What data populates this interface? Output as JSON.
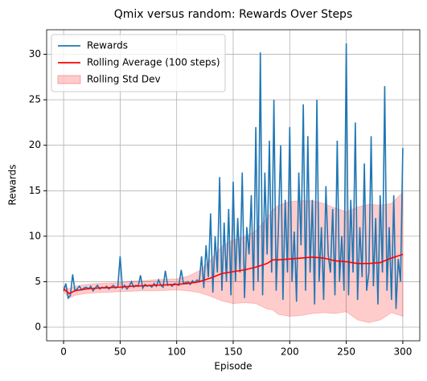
{
  "chart_data": {
    "type": "line",
    "title": "Qmix versus random: Rewards Over Steps",
    "xlabel": "Episode",
    "ylabel": "Rewards",
    "xlim": [
      -15,
      315
    ],
    "ylim": [
      -1.5,
      32.7
    ],
    "xticks": [
      0,
      50,
      100,
      150,
      200,
      250,
      300
    ],
    "yticks": [
      0,
      5,
      10,
      15,
      20,
      25,
      30
    ],
    "grid": true,
    "legend": "upper left",
    "series": [
      {
        "name": "Rewards",
        "color": "#1f77b4",
        "kind": "line",
        "x": [
          0,
          2,
          4,
          6,
          8,
          10,
          12,
          14,
          16,
          18,
          20,
          22,
          24,
          26,
          28,
          30,
          32,
          34,
          36,
          38,
          40,
          42,
          44,
          46,
          48,
          50,
          52,
          54,
          56,
          58,
          60,
          62,
          64,
          66,
          68,
          70,
          72,
          74,
          76,
          78,
          80,
          82,
          84,
          86,
          88,
          90,
          92,
          94,
          96,
          98,
          100,
          102,
          104,
          106,
          108,
          110,
          112,
          114,
          116,
          118,
          120,
          122,
          124,
          126,
          128,
          130,
          132,
          134,
          136,
          138,
          140,
          142,
          144,
          146,
          148,
          150,
          152,
          154,
          156,
          158,
          160,
          162,
          164,
          166,
          168,
          170,
          172,
          174,
          176,
          178,
          180,
          182,
          184,
          186,
          188,
          190,
          192,
          194,
          196,
          198,
          200,
          202,
          204,
          206,
          208,
          210,
          212,
          214,
          216,
          218,
          220,
          222,
          224,
          226,
          228,
          230,
          232,
          234,
          236,
          238,
          240,
          242,
          244,
          246,
          248,
          250,
          252,
          254,
          256,
          258,
          260,
          262,
          264,
          266,
          268,
          270,
          272,
          274,
          276,
          278,
          280,
          282,
          284,
          286,
          288,
          290,
          292,
          294,
          296,
          298,
          300
        ],
        "values": [
          4.0,
          4.8,
          3.2,
          3.5,
          5.8,
          4.0,
          4.2,
          4.5,
          4.1,
          4.3,
          4.4,
          4.2,
          4.5,
          4.0,
          4.3,
          4.6,
          4.2,
          4.4,
          4.3,
          4.5,
          4.2,
          4.4,
          4.6,
          4.3,
          4.5,
          7.8,
          4.3,
          4.6,
          4.2,
          4.5,
          5.0,
          4.4,
          4.6,
          4.5,
          5.7,
          4.3,
          4.7,
          4.5,
          4.6,
          4.4,
          4.8,
          4.5,
          5.2,
          4.6,
          4.4,
          6.2,
          4.6,
          4.7,
          4.5,
          4.8,
          4.7,
          4.6,
          6.3,
          4.8,
          4.9,
          5.0,
          4.7,
          5.1,
          4.9,
          5.2,
          5.0,
          7.8,
          4.3,
          9.0,
          5.5,
          12.5,
          3.8,
          10.0,
          6.0,
          16.5,
          4.0,
          11.5,
          5.0,
          13.0,
          3.5,
          16.0,
          5.0,
          12.0,
          6.0,
          17.0,
          3.2,
          11.0,
          8.0,
          14.5,
          4.0,
          22.0,
          5.0,
          30.2,
          3.5,
          17.0,
          8.0,
          20.5,
          6.0,
          25.0,
          4.0,
          11.0,
          20.0,
          3.0,
          14.0,
          6.0,
          22.0,
          5.0,
          10.5,
          2.8,
          17.0,
          9.0,
          24.5,
          4.0,
          21.0,
          6.0,
          14.0,
          2.5,
          25.0,
          5.0,
          11.0,
          3.0,
          15.5,
          8.0,
          6.0,
          13.0,
          3.5,
          20.5,
          5.0,
          10.0,
          4.0,
          31.2,
          3.5,
          14.0,
          6.0,
          22.5,
          3.0,
          11.0,
          5.5,
          18.0,
          4.0,
          6.0,
          21.0,
          4.5,
          12.0,
          2.5,
          14.5,
          6.0,
          26.5,
          4.0,
          11.0,
          3.0,
          14.5,
          2.0,
          7.5,
          5.0,
          19.7
        ]
      },
      {
        "name": "Rolling Average (100 steps)",
        "color": "#ff0000",
        "kind": "line",
        "x": [
          0,
          5,
          10,
          20,
          30,
          40,
          50,
          60,
          70,
          80,
          90,
          100,
          110,
          120,
          130,
          140,
          150,
          160,
          170,
          180,
          185,
          190,
          200,
          210,
          220,
          230,
          240,
          250,
          260,
          270,
          280,
          290,
          300
        ],
        "values": [
          4.2,
          3.7,
          4.0,
          4.2,
          4.3,
          4.35,
          4.4,
          4.5,
          4.55,
          4.6,
          4.65,
          4.7,
          4.8,
          5.0,
          5.4,
          5.9,
          6.1,
          6.3,
          6.6,
          7.0,
          7.4,
          7.4,
          7.5,
          7.6,
          7.7,
          7.6,
          7.3,
          7.2,
          7.0,
          7.0,
          7.1,
          7.6,
          8.0
        ]
      },
      {
        "name": "Rolling Std Dev",
        "color": "#ff0000",
        "kind": "band",
        "x": [
          0,
          5,
          10,
          20,
          30,
          40,
          50,
          60,
          70,
          80,
          90,
          100,
          110,
          120,
          130,
          140,
          150,
          160,
          170,
          180,
          185,
          190,
          200,
          210,
          220,
          230,
          240,
          250,
          260,
          270,
          280,
          290,
          300
        ],
        "values": [
          0.3,
          0.5,
          0.5,
          0.5,
          0.5,
          0.5,
          0.5,
          0.55,
          0.55,
          0.6,
          0.6,
          0.6,
          0.8,
          1.2,
          2.0,
          3.0,
          3.5,
          3.6,
          4.0,
          5.0,
          5.5,
          6.0,
          6.3,
          6.3,
          6.2,
          6.0,
          5.8,
          5.5,
          6.2,
          6.5,
          6.3,
          6.0,
          6.8
        ]
      }
    ]
  }
}
